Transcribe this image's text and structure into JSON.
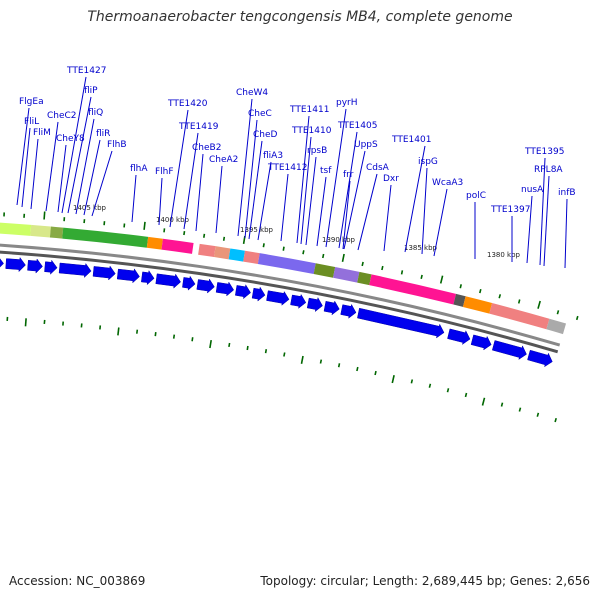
{
  "title": "Thermoanaerobacter tengcongensis MB4, complete genome",
  "footer": {
    "accession": "Accession: NC_003869",
    "summary": "Topology: circular; Length: 2,689,445 bp; Genes: 2,656"
  },
  "colors": {
    "gene_label": "#0000cc",
    "arrow": "#0000ee",
    "backbone": "#888888",
    "tick": "#006600"
  },
  "kbp_labels": [
    "1405 kbp",
    "1400 kbp",
    "1395 kbp",
    "1390 kbp",
    "1385 kbp",
    "1380 kbp"
  ],
  "gene_labels": [
    "FlgEa",
    "FliL",
    "FliM",
    "CheC2",
    "CheY8",
    "TTE1427",
    "fliP",
    "fliQ",
    "fliR",
    "FlhB",
    "flhA",
    "FlhF",
    "TTE1420",
    "TTE1419",
    "CheB2",
    "CheA2",
    "CheW4",
    "CheC",
    "CheD",
    "fliA3",
    "TTE1412",
    "TTE1411",
    "TTE1410",
    "rpsB",
    "tsf",
    "pyrH",
    "TTE1405",
    "UppS",
    "frr",
    "CdsA",
    "Dxr",
    "TTE1401",
    "ispG",
    "WcaA3",
    "polC",
    "TTE1397",
    "nusA",
    "TTE1395",
    "RPL8A",
    "infB"
  ]
}
